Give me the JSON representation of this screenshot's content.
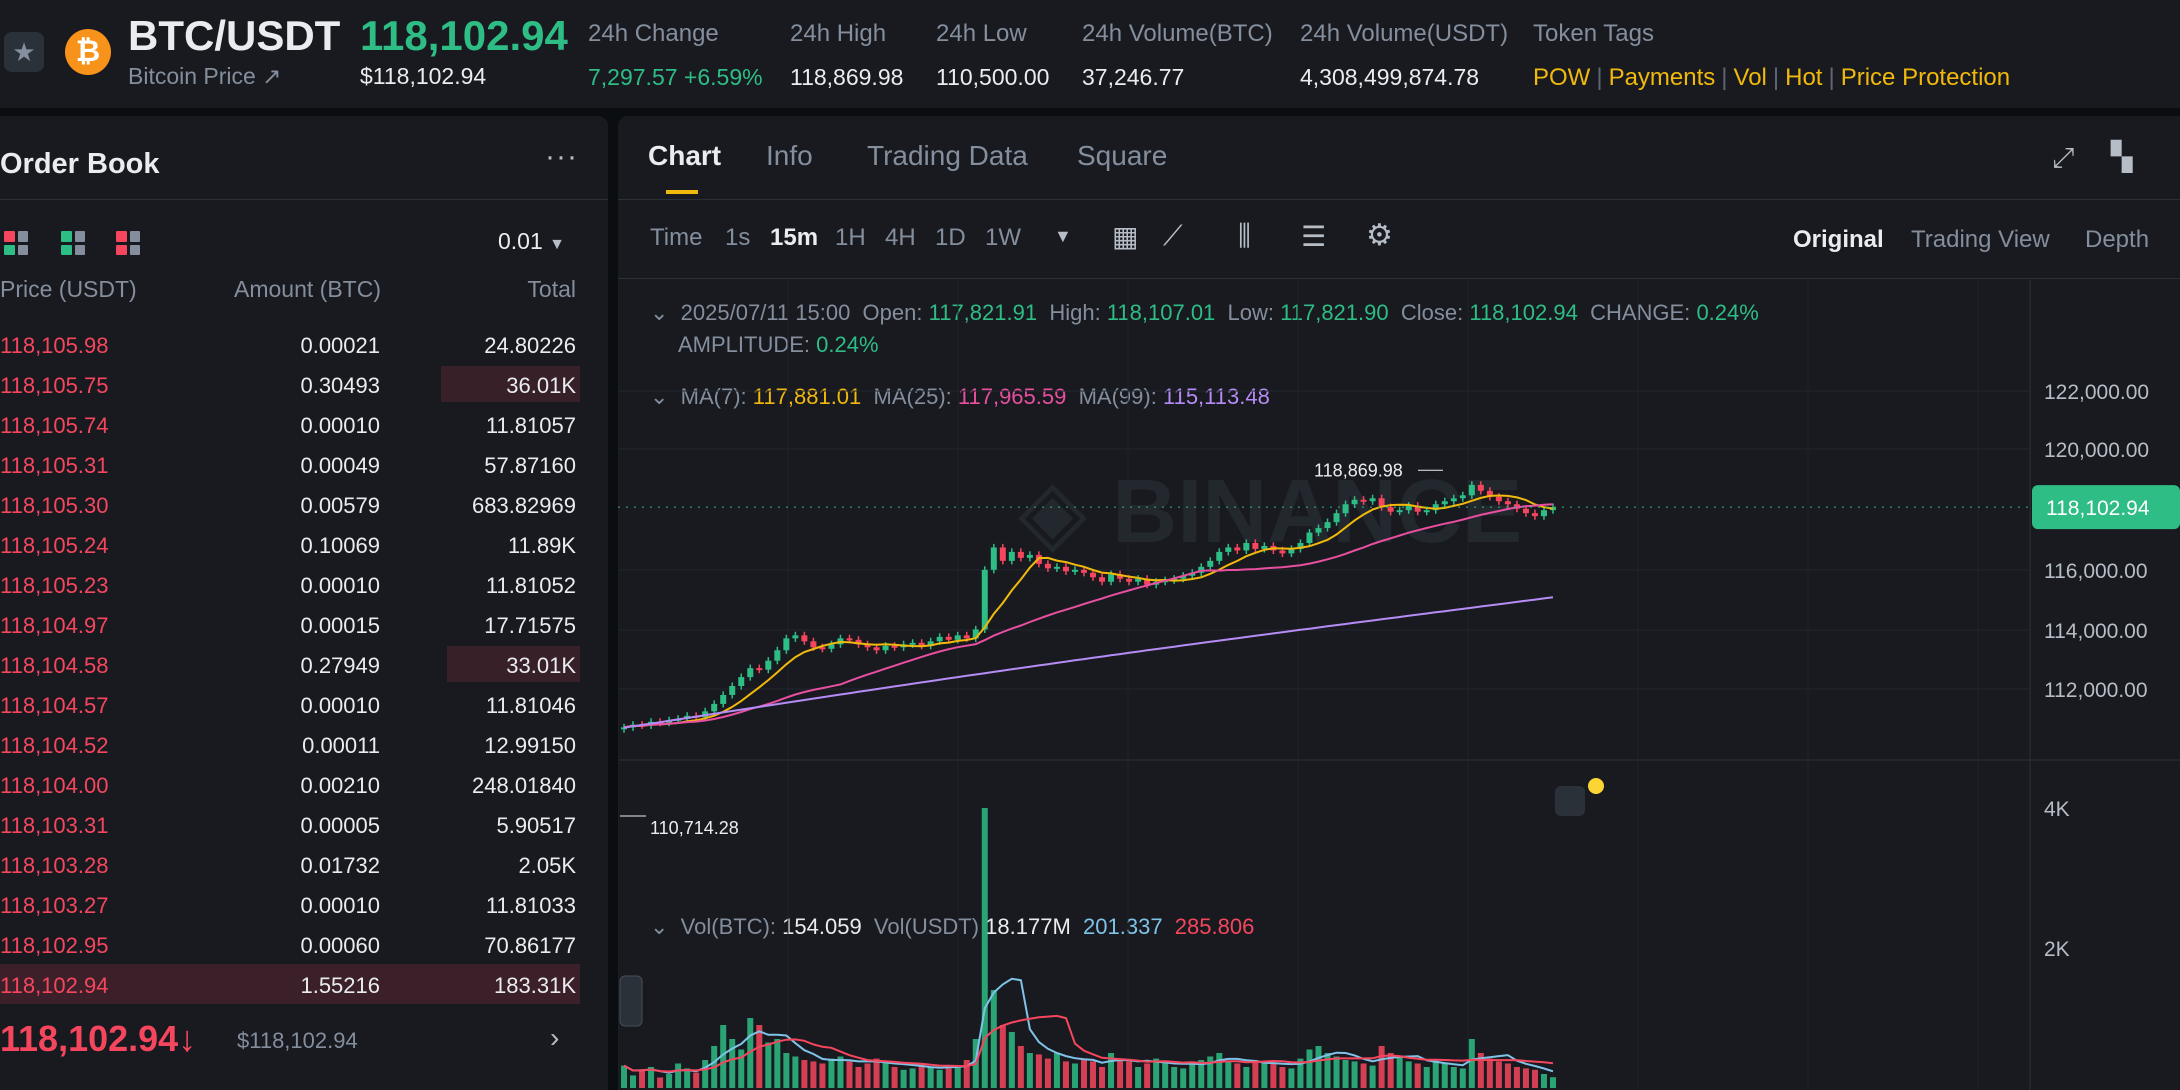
{
  "header": {
    "pair": "BTC/USDT",
    "subtitle": "Bitcoin Price ↗",
    "price": "118,102.94",
    "price_usd": "$118,102.94",
    "stats": [
      {
        "label": "24h Change",
        "value": "7,297.57 +6.59%",
        "color": "#2ebd85"
      },
      {
        "label": "24h High",
        "value": "118,869.98"
      },
      {
        "label": "24h Low",
        "value": "110,500.00"
      },
      {
        "label": "24h Volume(BTC)",
        "value": "37,246.77"
      },
      {
        "label": "24h Volume(USDT)",
        "value": "4,308,499,874.78"
      }
    ],
    "token_tags_label": "Token Tags",
    "token_tags": [
      "POW",
      "Payments",
      "Vol",
      "Hot",
      "Price Protection"
    ],
    "coin_icon": "bitcoin-icon",
    "favorite_icon": "star-icon"
  },
  "order_book": {
    "title": "Order Book",
    "more_icon": "ellipsis-icon",
    "precision": "0.01",
    "col_price": "Price (USDT)",
    "col_amount": "Amount (BTC)",
    "col_total": "Total",
    "asks": [
      {
        "price": "118,105.98",
        "amount": "0.00021",
        "total": "24.80226",
        "depth": 0.0
      },
      {
        "price": "118,105.75",
        "amount": "0.30493",
        "total": "36.01K",
        "depth": 0.24
      },
      {
        "price": "118,105.74",
        "amount": "0.00010",
        "total": "11.81057",
        "depth": 0.0
      },
      {
        "price": "118,105.31",
        "amount": "0.00049",
        "total": "57.87160",
        "depth": 0.0
      },
      {
        "price": "118,105.30",
        "amount": "0.00579",
        "total": "683.82969",
        "depth": 0.0
      },
      {
        "price": "118,105.24",
        "amount": "0.10069",
        "total": "11.89K",
        "depth": 0.0
      },
      {
        "price": "118,105.23",
        "amount": "0.00010",
        "total": "11.81052",
        "depth": 0.0
      },
      {
        "price": "118,104.97",
        "amount": "0.00015",
        "total": "17.71575",
        "depth": 0.0
      },
      {
        "price": "118,104.58",
        "amount": "0.27949",
        "total": "33.01K",
        "depth": 0.23
      },
      {
        "price": "118,104.57",
        "amount": "0.00010",
        "total": "11.81046",
        "depth": 0.0
      },
      {
        "price": "118,104.52",
        "amount": "0.00011",
        "total": "12.99150",
        "depth": 0.0
      },
      {
        "price": "118,104.00",
        "amount": "0.00210",
        "total": "248.01840",
        "depth": 0.0
      },
      {
        "price": "118,103.31",
        "amount": "0.00005",
        "total": "5.90517",
        "depth": 0.0
      },
      {
        "price": "118,103.28",
        "amount": "0.01732",
        "total": "2.05K",
        "depth": 0.0
      },
      {
        "price": "118,103.27",
        "amount": "0.00010",
        "total": "11.81033",
        "depth": 0.0
      },
      {
        "price": "118,102.95",
        "amount": "0.00060",
        "total": "70.86177",
        "depth": 0.0
      },
      {
        "price": "118,102.94",
        "amount": "1.55216",
        "total": "183.31K",
        "depth": 1.0
      }
    ],
    "last_price": "118,102.94↓",
    "last_price_usd": "$118,102.94"
  },
  "chart_panel": {
    "tabs": [
      "Chart",
      "Info",
      "Trading Data",
      "Square"
    ],
    "active_tab": "Chart",
    "timeframes": [
      "Time",
      "1s",
      "15m",
      "1H",
      "4H",
      "1D",
      "1W"
    ],
    "active_timeframe": "15m",
    "views": [
      "Original",
      "Trading View",
      "Depth"
    ],
    "active_view": "Original",
    "ohlc": {
      "date": "2025/07/11 15:00",
      "open_label": "Open:",
      "open": "117,821.91",
      "high_label": "High:",
      "high": "118,107.01",
      "low_label": "Low:",
      "low": "117,821.90",
      "close_label": "Close:",
      "close": "118,102.94",
      "change_label": "CHANGE:",
      "change": "0.24%",
      "amplitude_label": "AMPLITUDE:",
      "amplitude": "0.24%"
    },
    "ma": {
      "ma7_label": "MA(7):",
      "ma7": "117,881.01",
      "ma25_label": "MA(25):",
      "ma25": "117,965.59",
      "ma99_label": "MA(99):",
      "ma99": "115,113.48"
    },
    "vol": {
      "btc_label": "Vol(BTC):",
      "btc": "154.059",
      "usdt_label": "Vol(USDT)",
      "usdt": "18.177M",
      "ma5": "201.337",
      "ma10": "285.806"
    },
    "colors": {
      "up": "#2ebd85",
      "down": "#f6465d",
      "ma7": "#f0b90b",
      "ma25": "#e84fa0",
      "ma99": "#b58cf5",
      "vol_ma5": "#7fc3e8",
      "vol_ma10": "#f6465d"
    }
  },
  "chart_data": {
    "type": "candlestick",
    "y_ticks": [
      "122,000.00",
      "120,000.00",
      "116,000.00",
      "114,000.00",
      "112,000.00"
    ],
    "current_price_tag": "118,102.94",
    "max_label": "118,869.98",
    "min_label": "110,714.28",
    "volume_ticks": [
      "4K",
      "2K"
    ],
    "ylim": [
      110000,
      123000
    ],
    "close_prices": [
      110714,
      110800,
      110780,
      110900,
      110870,
      110950,
      111000,
      111100,
      111050,
      111250,
      111500,
      111800,
      112100,
      112400,
      112700,
      112650,
      112950,
      113300,
      113700,
      113800,
      113600,
      113400,
      113350,
      113500,
      113700,
      113650,
      113500,
      113400,
      113300,
      113450,
      113400,
      113500,
      113550,
      113450,
      113600,
      113750,
      113650,
      113800,
      113700,
      114000,
      116000,
      116750,
      116300,
      116600,
      116400,
      116500,
      116200,
      116050,
      116100,
      115950,
      116000,
      115900,
      115750,
      115600,
      115850,
      115700,
      115600,
      115700,
      115500,
      115600,
      115650,
      115700,
      115800,
      115900,
      116100,
      116300,
      116600,
      116750,
      116650,
      116900,
      116700,
      116800,
      116650,
      116550,
      116700,
      116900,
      117250,
      117400,
      117600,
      117900,
      118200,
      118350,
      118300,
      118400,
      118100,
      117950,
      118000,
      118150,
      117950,
      118000,
      118200,
      118300,
      118400,
      118500,
      118850,
      118650,
      118450,
      118300,
      118200,
      118050,
      117900,
      117800,
      118000,
      118103
    ],
    "volumes": [
      320,
      180,
      260,
      300,
      150,
      200,
      350,
      280,
      220,
      400,
      600,
      900,
      700,
      550,
      1000,
      900,
      650,
      700,
      500,
      450,
      400,
      380,
      350,
      420,
      450,
      380,
      300,
      350,
      420,
      380,
      300,
      260,
      280,
      350,
      300,
      260,
      280,
      320,
      400,
      700,
      4000,
      1400,
      900,
      800,
      600,
      500,
      480,
      420,
      500,
      380,
      350,
      400,
      380,
      300,
      500,
      420,
      380,
      300,
      350,
      420,
      380,
      300,
      280,
      350,
      400,
      450,
      500,
      380,
      350,
      300,
      400,
      380,
      350,
      300,
      280,
      420,
      550,
      600,
      500,
      450,
      400,
      380,
      350,
      320,
      600,
      500,
      450,
      380,
      350,
      300,
      400,
      350,
      300,
      280,
      700,
      500,
      420,
      380,
      350,
      300,
      280,
      260,
      200,
      154
    ]
  }
}
